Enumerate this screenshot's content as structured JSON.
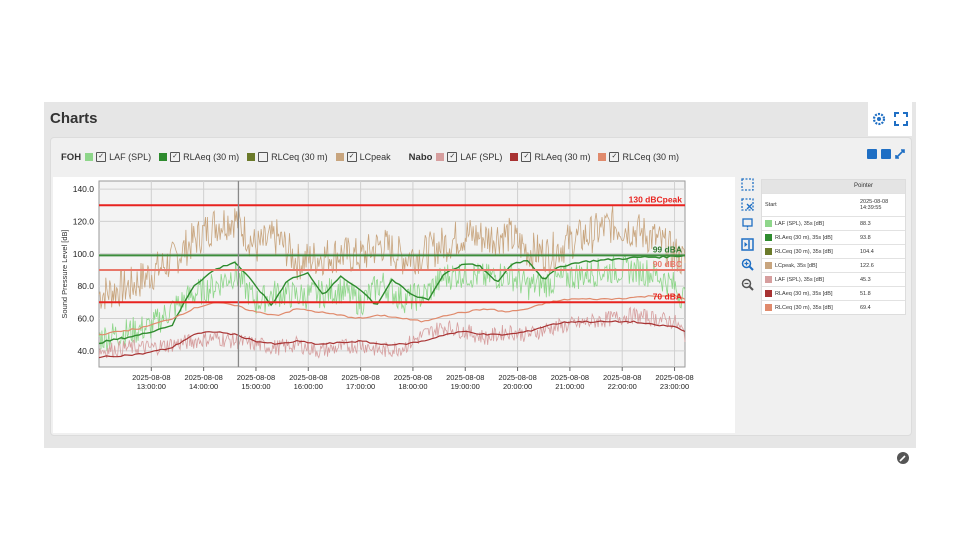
{
  "page": {
    "title": "Charts"
  },
  "corner_icons": [
    "gear-icon",
    "expand-icon"
  ],
  "legend": {
    "groups": [
      {
        "name": "FOH",
        "items": [
          {
            "label": "LAF (SPL)",
            "color": "#8ed68a",
            "checked": true
          },
          {
            "label": "RLAeq (30 m)",
            "color": "#2e8b2e",
            "checked": true
          },
          {
            "label": "RLCeq (30 m)",
            "color": "#6b7a2a",
            "checked": false
          },
          {
            "label": "LCpeak",
            "color": "#c8a57e",
            "checked": true
          }
        ]
      },
      {
        "name": "Nabo",
        "items": [
          {
            "label": "LAF (SPL)",
            "color": "#d69e9e",
            "checked": true
          },
          {
            "label": "RLAeq (30 m)",
            "color": "#a83232",
            "checked": true
          },
          {
            "label": "RLCeq (30 m)",
            "color": "#e08a6c",
            "checked": true
          }
        ]
      }
    ],
    "check_mark": "✓"
  },
  "pointer_table": {
    "header": "Pointer",
    "start_label": "Start",
    "start_value": "2025-08-08 14:39:55",
    "rows": [
      {
        "label": "LAF (SPL), 35s [dB]",
        "value": "88.3",
        "color": "#8ed68a"
      },
      {
        "label": "RLAeq (30 m), 35s [dB]",
        "value": "93.8",
        "color": "#2e8b2e"
      },
      {
        "label": "RLCeq (30 m), 35s [dB]",
        "value": "104.4",
        "color": "#6b7a2a"
      },
      {
        "label": "LCpeak, 35s [dB]",
        "value": "122.6",
        "color": "#c8a57e"
      },
      {
        "label": "LAF (SPL), 35s [dB]",
        "value": "45.3",
        "color": "#d69e9e"
      },
      {
        "label": "RLAeq (30 m), 35s [dB]",
        "value": "51.8",
        "color": "#a83232"
      },
      {
        "label": "RLCeq (30 m), 35s [dB]",
        "value": "69.4",
        "color": "#e08a6c"
      }
    ]
  },
  "chart_data": {
    "type": "line",
    "ylabel": "Sound Pressure Level [dB]",
    "ylim": [
      30,
      145
    ],
    "yticks": [
      "40.0",
      "60.0",
      "80.0",
      "100.0",
      "120.0",
      "140.0"
    ],
    "ytick_values": [
      40,
      60,
      80,
      100,
      120,
      140
    ],
    "x_hours": [
      13,
      14,
      15,
      16,
      17,
      18,
      19,
      20,
      21,
      22,
      23
    ],
    "xtick_dates": [
      "2025-08-08",
      "2025-08-08",
      "2025-08-08",
      "2025-08-08",
      "2025-08-08",
      "2025-08-08",
      "2025-08-08",
      "2025-08-08",
      "2025-08-08",
      "2025-08-08",
      "2025-08-08"
    ],
    "xtick_times": [
      "13:00:00",
      "14:00:00",
      "15:00:00",
      "16:00:00",
      "17:00:00",
      "18:00:00",
      "19:00:00",
      "20:00:00",
      "21:00:00",
      "22:00:00",
      "23:00:00"
    ],
    "xlim_hours": [
      12.0,
      23.2
    ],
    "pointer_hour": 14.665,
    "grid": true,
    "thresholds": [
      {
        "value": 130,
        "label": "130 dBCpeak",
        "color": "#e8231f",
        "label_color": "#e8231f"
      },
      {
        "value": 99,
        "label": "99 dBA",
        "color": "#3c8c3c",
        "label_color": "#2f7a2f"
      },
      {
        "value": 90,
        "label": "90 dBC",
        "color": "#e8776a",
        "label_color": "#e8776a"
      },
      {
        "value": 70,
        "label": "70 dBA",
        "color": "#e8231f",
        "label_color": "#e8231f"
      }
    ],
    "series": [
      {
        "key": "foh_lcpeak",
        "color": "#c8a57e",
        "keypoints": [
          [
            12.0,
            75
          ],
          [
            12.6,
            80
          ],
          [
            13.0,
            88
          ],
          [
            13.4,
            96
          ],
          [
            13.8,
            108
          ],
          [
            14.2,
            118
          ],
          [
            14.6,
            122
          ],
          [
            15.0,
            104
          ],
          [
            15.4,
            110
          ],
          [
            15.8,
            95
          ],
          [
            16.2,
            98
          ],
          [
            16.6,
            100
          ],
          [
            17.0,
            98
          ],
          [
            17.4,
            106
          ],
          [
            17.8,
            98
          ],
          [
            18.2,
            100
          ],
          [
            18.6,
            106
          ],
          [
            19.0,
            112
          ],
          [
            19.4,
            110
          ],
          [
            19.8,
            112
          ],
          [
            20.2,
            102
          ],
          [
            20.6,
            100
          ],
          [
            21.0,
            108
          ],
          [
            21.4,
            112
          ],
          [
            21.8,
            118
          ],
          [
            22.2,
            115
          ],
          [
            22.6,
            110
          ],
          [
            23.0,
            100
          ],
          [
            23.2,
            95
          ]
        ]
      },
      {
        "key": "foh_laf",
        "color": "#8ed68a",
        "keypoints": [
          [
            12.0,
            48
          ],
          [
            12.6,
            52
          ],
          [
            13.0,
            55
          ],
          [
            13.4,
            66
          ],
          [
            13.8,
            75
          ],
          [
            14.2,
            80
          ],
          [
            14.6,
            88
          ],
          [
            15.0,
            70
          ],
          [
            15.4,
            76
          ],
          [
            15.8,
            74
          ],
          [
            16.2,
            75
          ],
          [
            16.6,
            78
          ],
          [
            17.0,
            70
          ],
          [
            17.4,
            82
          ],
          [
            17.8,
            72
          ],
          [
            18.2,
            74
          ],
          [
            18.6,
            86
          ],
          [
            19.0,
            88
          ],
          [
            19.4,
            85
          ],
          [
            19.8,
            88
          ],
          [
            20.2,
            80
          ],
          [
            20.6,
            82
          ],
          [
            21.0,
            86
          ],
          [
            21.4,
            88
          ],
          [
            21.8,
            90
          ],
          [
            22.2,
            90
          ],
          [
            22.6,
            88
          ],
          [
            23.0,
            80
          ],
          [
            23.2,
            72
          ]
        ]
      },
      {
        "key": "foh_rlaeq",
        "color": "#2e8b2e",
        "keypoints": [
          [
            12.0,
            45
          ],
          [
            12.8,
            50
          ],
          [
            13.4,
            56
          ],
          [
            13.8,
            80
          ],
          [
            14.2,
            90
          ],
          [
            14.6,
            95
          ],
          [
            15.0,
            80
          ],
          [
            15.3,
            68
          ],
          [
            15.6,
            84
          ],
          [
            16.0,
            88
          ],
          [
            16.3,
            74
          ],
          [
            16.6,
            86
          ],
          [
            17.0,
            78
          ],
          [
            17.3,
            68
          ],
          [
            17.6,
            84
          ],
          [
            18.0,
            74
          ],
          [
            18.3,
            72
          ],
          [
            18.6,
            88
          ],
          [
            19.0,
            94
          ],
          [
            19.3,
            92
          ],
          [
            19.6,
            82
          ],
          [
            19.9,
            94
          ],
          [
            20.2,
            96
          ],
          [
            20.5,
            84
          ],
          [
            20.8,
            92
          ],
          [
            21.2,
            95
          ],
          [
            21.6,
            96
          ],
          [
            22.0,
            97
          ],
          [
            22.4,
            98
          ],
          [
            22.8,
            98
          ],
          [
            23.2,
            99
          ]
        ]
      },
      {
        "key": "nabo_laf",
        "color": "#d69e9e",
        "keypoints": [
          [
            12.0,
            40
          ],
          [
            12.6,
            42
          ],
          [
            13.0,
            42
          ],
          [
            13.4,
            44
          ],
          [
            13.8,
            46
          ],
          [
            14.2,
            48
          ],
          [
            14.6,
            46
          ],
          [
            15.0,
            44
          ],
          [
            15.4,
            42
          ],
          [
            15.8,
            44
          ],
          [
            16.2,
            40
          ],
          [
            16.6,
            42
          ],
          [
            17.0,
            44
          ],
          [
            17.4,
            40
          ],
          [
            17.8,
            42
          ],
          [
            18.2,
            50
          ],
          [
            18.6,
            55
          ],
          [
            19.0,
            52
          ],
          [
            19.4,
            48
          ],
          [
            19.8,
            52
          ],
          [
            20.2,
            50
          ],
          [
            20.6,
            54
          ],
          [
            21.0,
            56
          ],
          [
            21.4,
            58
          ],
          [
            21.8,
            60
          ],
          [
            22.2,
            62
          ],
          [
            22.6,
            60
          ],
          [
            23.0,
            58
          ],
          [
            23.2,
            50
          ]
        ]
      },
      {
        "key": "nabo_rlaeq",
        "color": "#a83232",
        "keypoints": [
          [
            12.0,
            36
          ],
          [
            12.8,
            38
          ],
          [
            13.4,
            42
          ],
          [
            13.8,
            50
          ],
          [
            14.2,
            52
          ],
          [
            14.6,
            50
          ],
          [
            15.0,
            46
          ],
          [
            15.4,
            44
          ],
          [
            15.8,
            46
          ],
          [
            16.2,
            44
          ],
          [
            16.6,
            45
          ],
          [
            17.0,
            46
          ],
          [
            17.4,
            44
          ],
          [
            17.8,
            44
          ],
          [
            18.2,
            46
          ],
          [
            18.6,
            50
          ],
          [
            19.0,
            52
          ],
          [
            19.4,
            50
          ],
          [
            19.8,
            50
          ],
          [
            20.2,
            52
          ],
          [
            20.6,
            56
          ],
          [
            21.0,
            58
          ],
          [
            21.4,
            58
          ],
          [
            21.8,
            58
          ],
          [
            22.2,
            58
          ],
          [
            22.6,
            56
          ],
          [
            23.0,
            55
          ],
          [
            23.2,
            52
          ]
        ]
      },
      {
        "key": "nabo_rlceq",
        "color": "#e08a6c",
        "keypoints": [
          [
            12.0,
            50
          ],
          [
            12.8,
            54
          ],
          [
            13.4,
            60
          ],
          [
            13.8,
            66
          ],
          [
            14.2,
            70
          ],
          [
            14.6,
            68
          ],
          [
            15.0,
            64
          ],
          [
            15.4,
            62
          ],
          [
            15.8,
            66
          ],
          [
            16.2,
            64
          ],
          [
            16.6,
            62
          ],
          [
            17.0,
            60
          ],
          [
            17.4,
            62
          ],
          [
            17.8,
            60
          ],
          [
            18.2,
            58
          ],
          [
            18.6,
            62
          ],
          [
            19.0,
            64
          ],
          [
            19.4,
            66
          ],
          [
            19.8,
            64
          ],
          [
            20.2,
            66
          ],
          [
            20.6,
            70
          ],
          [
            21.0,
            72
          ],
          [
            21.4,
            72
          ],
          [
            21.8,
            72
          ],
          [
            22.2,
            73
          ],
          [
            22.6,
            74
          ],
          [
            23.0,
            74
          ],
          [
            23.2,
            72
          ]
        ]
      }
    ]
  }
}
